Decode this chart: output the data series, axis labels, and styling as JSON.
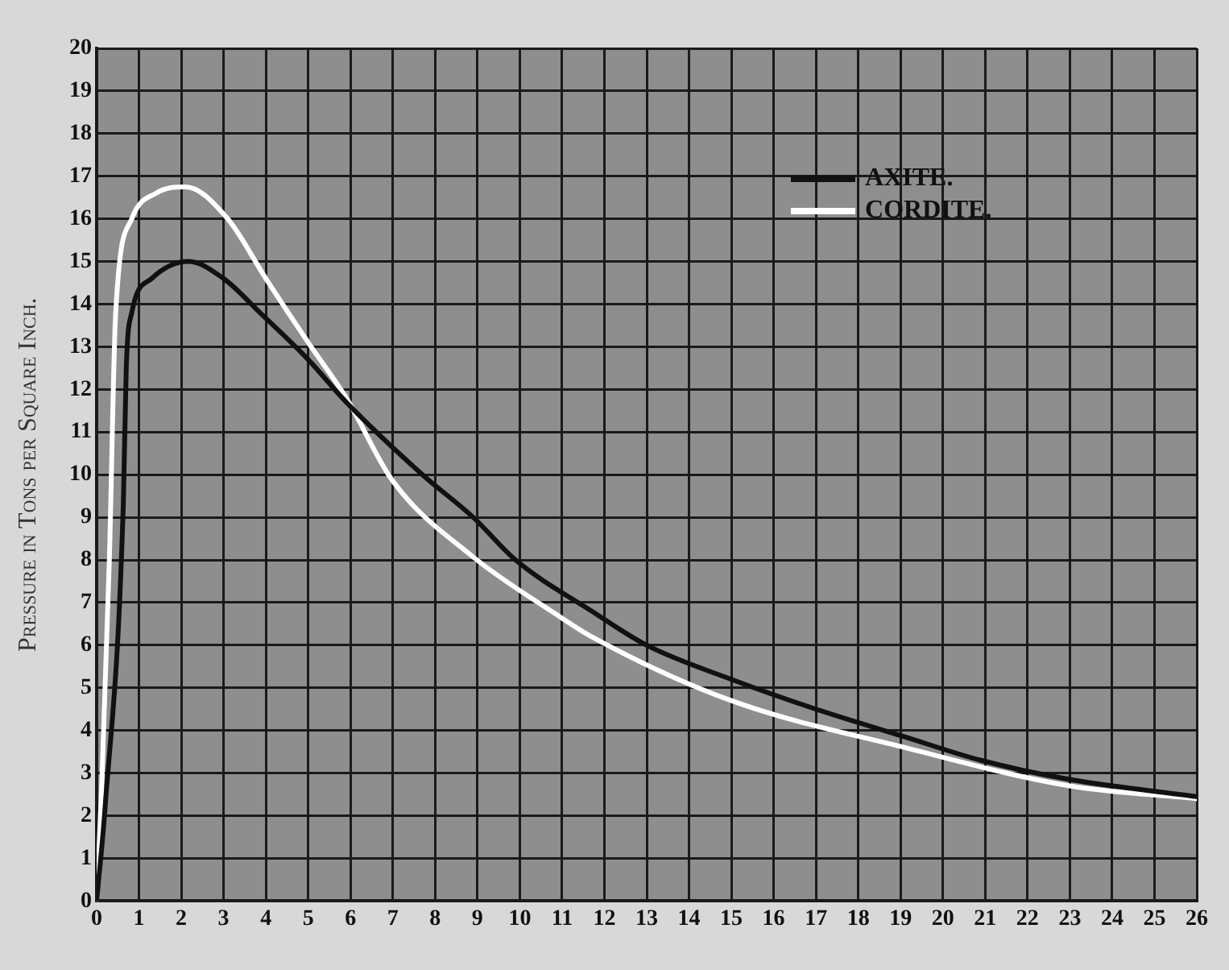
{
  "chart_data": {
    "type": "line",
    "ylabel": "Pressure in Tons per Square Inch.",
    "xlim": [
      0,
      26
    ],
    "xticks": [
      0,
      1,
      2,
      3,
      4,
      5,
      6,
      7,
      8,
      9,
      10,
      11,
      12,
      13,
      14,
      15,
      16,
      17,
      18,
      19,
      20,
      21,
      22,
      23,
      24,
      25,
      26
    ],
    "ylim": [
      0,
      20
    ],
    "yticks": [
      0,
      1,
      2,
      3,
      4,
      5,
      6,
      7,
      8,
      9,
      10,
      11,
      12,
      13,
      14,
      15,
      16,
      17,
      18,
      19,
      20
    ],
    "grid": true,
    "legend": "top right",
    "marker": "none",
    "line_style": "solid",
    "series": [
      {
        "name": "AXITE.",
        "color": "#111111",
        "x": [
          0,
          0.2,
          0.63,
          0.7,
          0.83,
          1.3,
          2.17,
          3.0,
          3.86,
          5.0,
          5.9,
          7.7,
          8.9,
          9.9,
          11.7,
          13.0,
          15.0,
          17.0,
          19.1,
          20.9,
          23.0,
          26.0
        ],
        "values": [
          0,
          2.2,
          9.3,
          12.5,
          13.8,
          14.6,
          15.0,
          14.6,
          13.8,
          12.7,
          11.7,
          10.0,
          9.0,
          8.0,
          6.8,
          6.0,
          5.2,
          4.5,
          3.85,
          3.3,
          2.85,
          2.45
        ]
      },
      {
        "name": "CORDITE.",
        "color": "#ffffff",
        "x": [
          0,
          0.12,
          0.3,
          0.45,
          0.83,
          1.4,
          2.1,
          3.1,
          4.0,
          5.0,
          5.9,
          7.0,
          8.86,
          10.9,
          11.7,
          15.0,
          19.1,
          23.0,
          26.0
        ],
        "values": [
          0,
          2.7,
          8.0,
          13.8,
          16.0,
          16.6,
          16.75,
          16.0,
          14.6,
          13.1,
          11.8,
          9.85,
          8.1,
          6.7,
          6.2,
          4.7,
          3.6,
          2.7,
          2.4
        ]
      }
    ]
  }
}
